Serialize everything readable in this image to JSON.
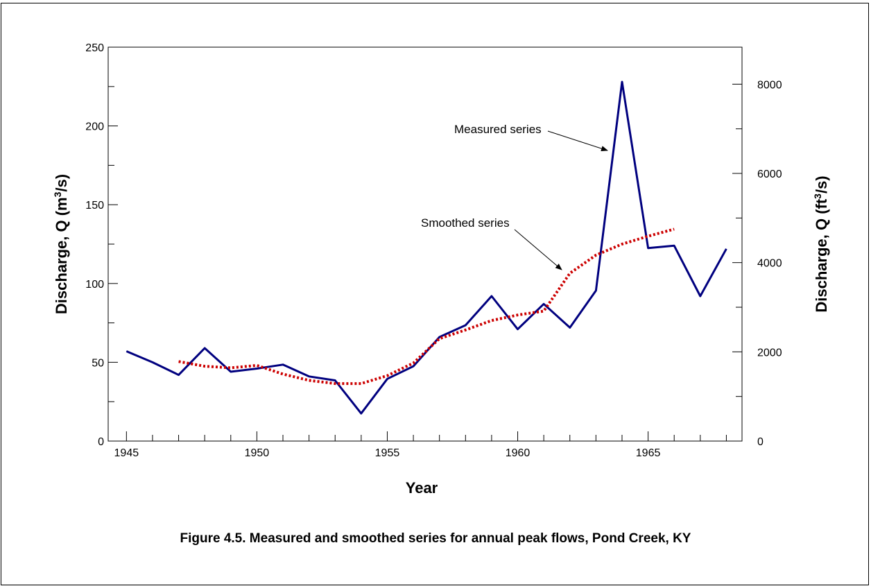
{
  "caption": "Figure 4.5. Measured and smoothed series for annual peak flows, Pond Creek, KY",
  "chart_data": {
    "type": "line",
    "title": "",
    "xlabel": "Year",
    "ylabel_left": {
      "pre": "Discharge, Q (m",
      "sup": "3",
      "post": "/s)"
    },
    "ylabel_right": {
      "pre": "Discharge, Q (ft",
      "sup": "3",
      "post": "/s)"
    },
    "xlim": [
      1944.3,
      1968.6
    ],
    "ylim_left": [
      0,
      250
    ],
    "ylim_right": [
      0,
      8830
    ],
    "x_ticks": [
      1945,
      1950,
      1955,
      1960,
      1965
    ],
    "y_ticks_left": [
      0,
      50,
      100,
      150,
      200,
      250
    ],
    "y_ticks_right": [
      0,
      2000,
      4000,
      6000,
      8000
    ],
    "grid": false,
    "series": [
      {
        "name": "Measured series",
        "color": "#00007f",
        "style": "solid",
        "x": [
          1945,
          1946,
          1947,
          1948,
          1949,
          1950,
          1951,
          1952,
          1953,
          1954,
          1955,
          1956,
          1957,
          1958,
          1959,
          1960,
          1961,
          1962,
          1963,
          1964,
          1965,
          1966,
          1967,
          1968
        ],
        "y": [
          57,
          50,
          42,
          59,
          44,
          46,
          48.5,
          41,
          38.5,
          17.5,
          39.5,
          47.5,
          66,
          73.5,
          92,
          71,
          87,
          72,
          95.5,
          228,
          122.5,
          124,
          92,
          122
        ]
      },
      {
        "name": "Smoothed series",
        "color": "#cc0000",
        "style": "dotted",
        "x": [
          1947,
          1948,
          1949,
          1950,
          1951,
          1952,
          1953,
          1954,
          1955,
          1956,
          1957,
          1958,
          1959,
          1960,
          1961,
          1962,
          1963,
          1964,
          1965,
          1966
        ],
        "y": [
          50.5,
          47.5,
          46.5,
          48,
          42.5,
          38.5,
          36.5,
          36.5,
          41.5,
          49.5,
          65,
          70.5,
          76.5,
          80,
          82.5,
          106.5,
          118,
          125,
          130,
          134.5
        ]
      }
    ],
    "annotations": [
      {
        "text": "Measured series",
        "points_to_series": "Measured series"
      },
      {
        "text": "Smoothed series",
        "points_to_series": "Smoothed series"
      }
    ]
  }
}
